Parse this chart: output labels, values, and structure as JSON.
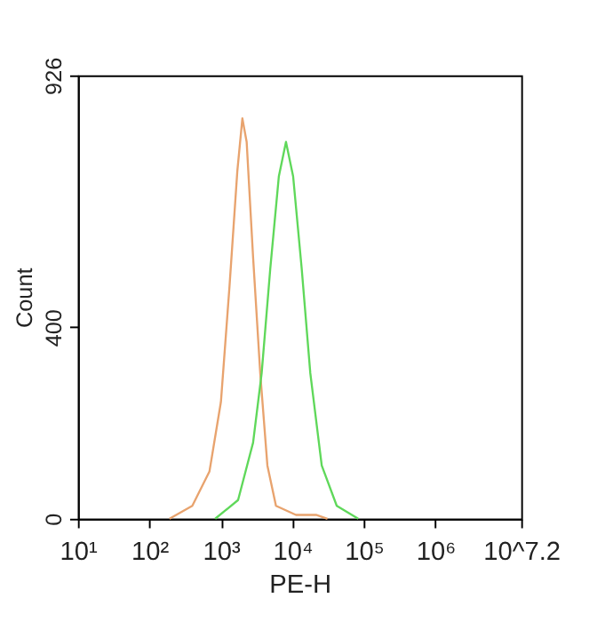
{
  "chart_data": {
    "type": "line",
    "xlabel": "PE-H",
    "ylabel": "Count",
    "log": "x",
    "grid": false,
    "legend": false,
    "marker": "none",
    "line_style": "solid",
    "xlim": [
      10,
      15848932
    ],
    "ylim": [
      0,
      926
    ],
    "xticks": [
      {
        "value": 10,
        "label": "10¹"
      },
      {
        "value": 100,
        "label": "10²"
      },
      {
        "value": 1000,
        "label": "10³"
      },
      {
        "value": 10000,
        "label": "10⁴"
      },
      {
        "value": 100000,
        "label": "10⁵"
      },
      {
        "value": 1000000,
        "label": "10⁶"
      },
      {
        "value": 15848932,
        "label": "10^7.2"
      }
    ],
    "yticks": [
      0,
      400,
      926
    ],
    "series": [
      {
        "color": "#e8a36e",
        "x": [
          191,
          398,
          692,
          1000,
          1318,
          1698,
          1995,
          2291,
          2818,
          3548,
          4467,
          5888,
          11220,
          21380,
          30900
        ],
        "values": [
          0,
          27,
          99,
          244,
          485,
          727,
          836,
          787,
          546,
          304,
          111,
          27,
          8,
          8,
          0
        ]
      },
      {
        "color": "#5fd85a",
        "x": [
          832,
          1738,
          2818,
          3715,
          4898,
          6457,
          8128,
          10233,
          13490,
          17783,
          25704,
          41687,
          83176
        ],
        "values": [
          0,
          39,
          159,
          304,
          522,
          715,
          787,
          715,
          522,
          304,
          111,
          27,
          0
        ]
      }
    ]
  }
}
